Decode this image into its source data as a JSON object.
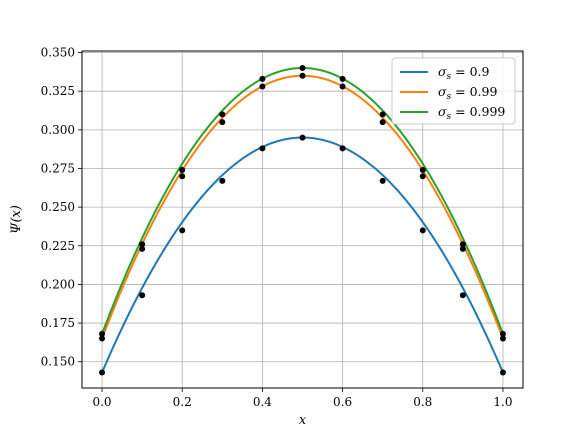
{
  "chart_data": {
    "type": "line",
    "xlabel": "x",
    "ylabel": "Ψ(x)",
    "xlim": [
      -0.05,
      1.05
    ],
    "ylim": [
      0.133,
      0.351
    ],
    "x_ticks": [
      "0.0",
      "0.2",
      "0.4",
      "0.6",
      "0.8",
      "1.0"
    ],
    "y_ticks": [
      "0.150",
      "0.175",
      "0.200",
      "0.225",
      "0.250",
      "0.275",
      "0.300",
      "0.325",
      "0.350"
    ],
    "grid": true,
    "legend_position": "top-right",
    "x": [
      0.0,
      0.1,
      0.2,
      0.3,
      0.4,
      0.5,
      0.6,
      0.7,
      0.8,
      0.9,
      1.0
    ],
    "series": [
      {
        "name": "σs = 0.9",
        "label_symbol": "σ",
        "label_sub": "s",
        "label_value": " = 0.9",
        "color": "#1f77b4",
        "values": [
          0.143,
          0.193,
          0.235,
          0.267,
          0.288,
          0.295,
          0.288,
          0.267,
          0.235,
          0.193,
          0.143
        ]
      },
      {
        "name": "σs = 0.99",
        "label_symbol": "σ",
        "label_sub": "s",
        "label_value": " = 0.99",
        "color": "#ff7f0e",
        "values": [
          0.165,
          0.223,
          0.27,
          0.305,
          0.328,
          0.335,
          0.328,
          0.305,
          0.27,
          0.223,
          0.165
        ]
      },
      {
        "name": "σs = 0.999",
        "label_symbol": "σ",
        "label_sub": "s",
        "label_value": " = 0.999",
        "color": "#2ca02c",
        "values": [
          0.168,
          0.226,
          0.274,
          0.31,
          0.333,
          0.34,
          0.333,
          0.31,
          0.274,
          0.226,
          0.168
        ]
      }
    ],
    "marker_color": "#000000"
  }
}
